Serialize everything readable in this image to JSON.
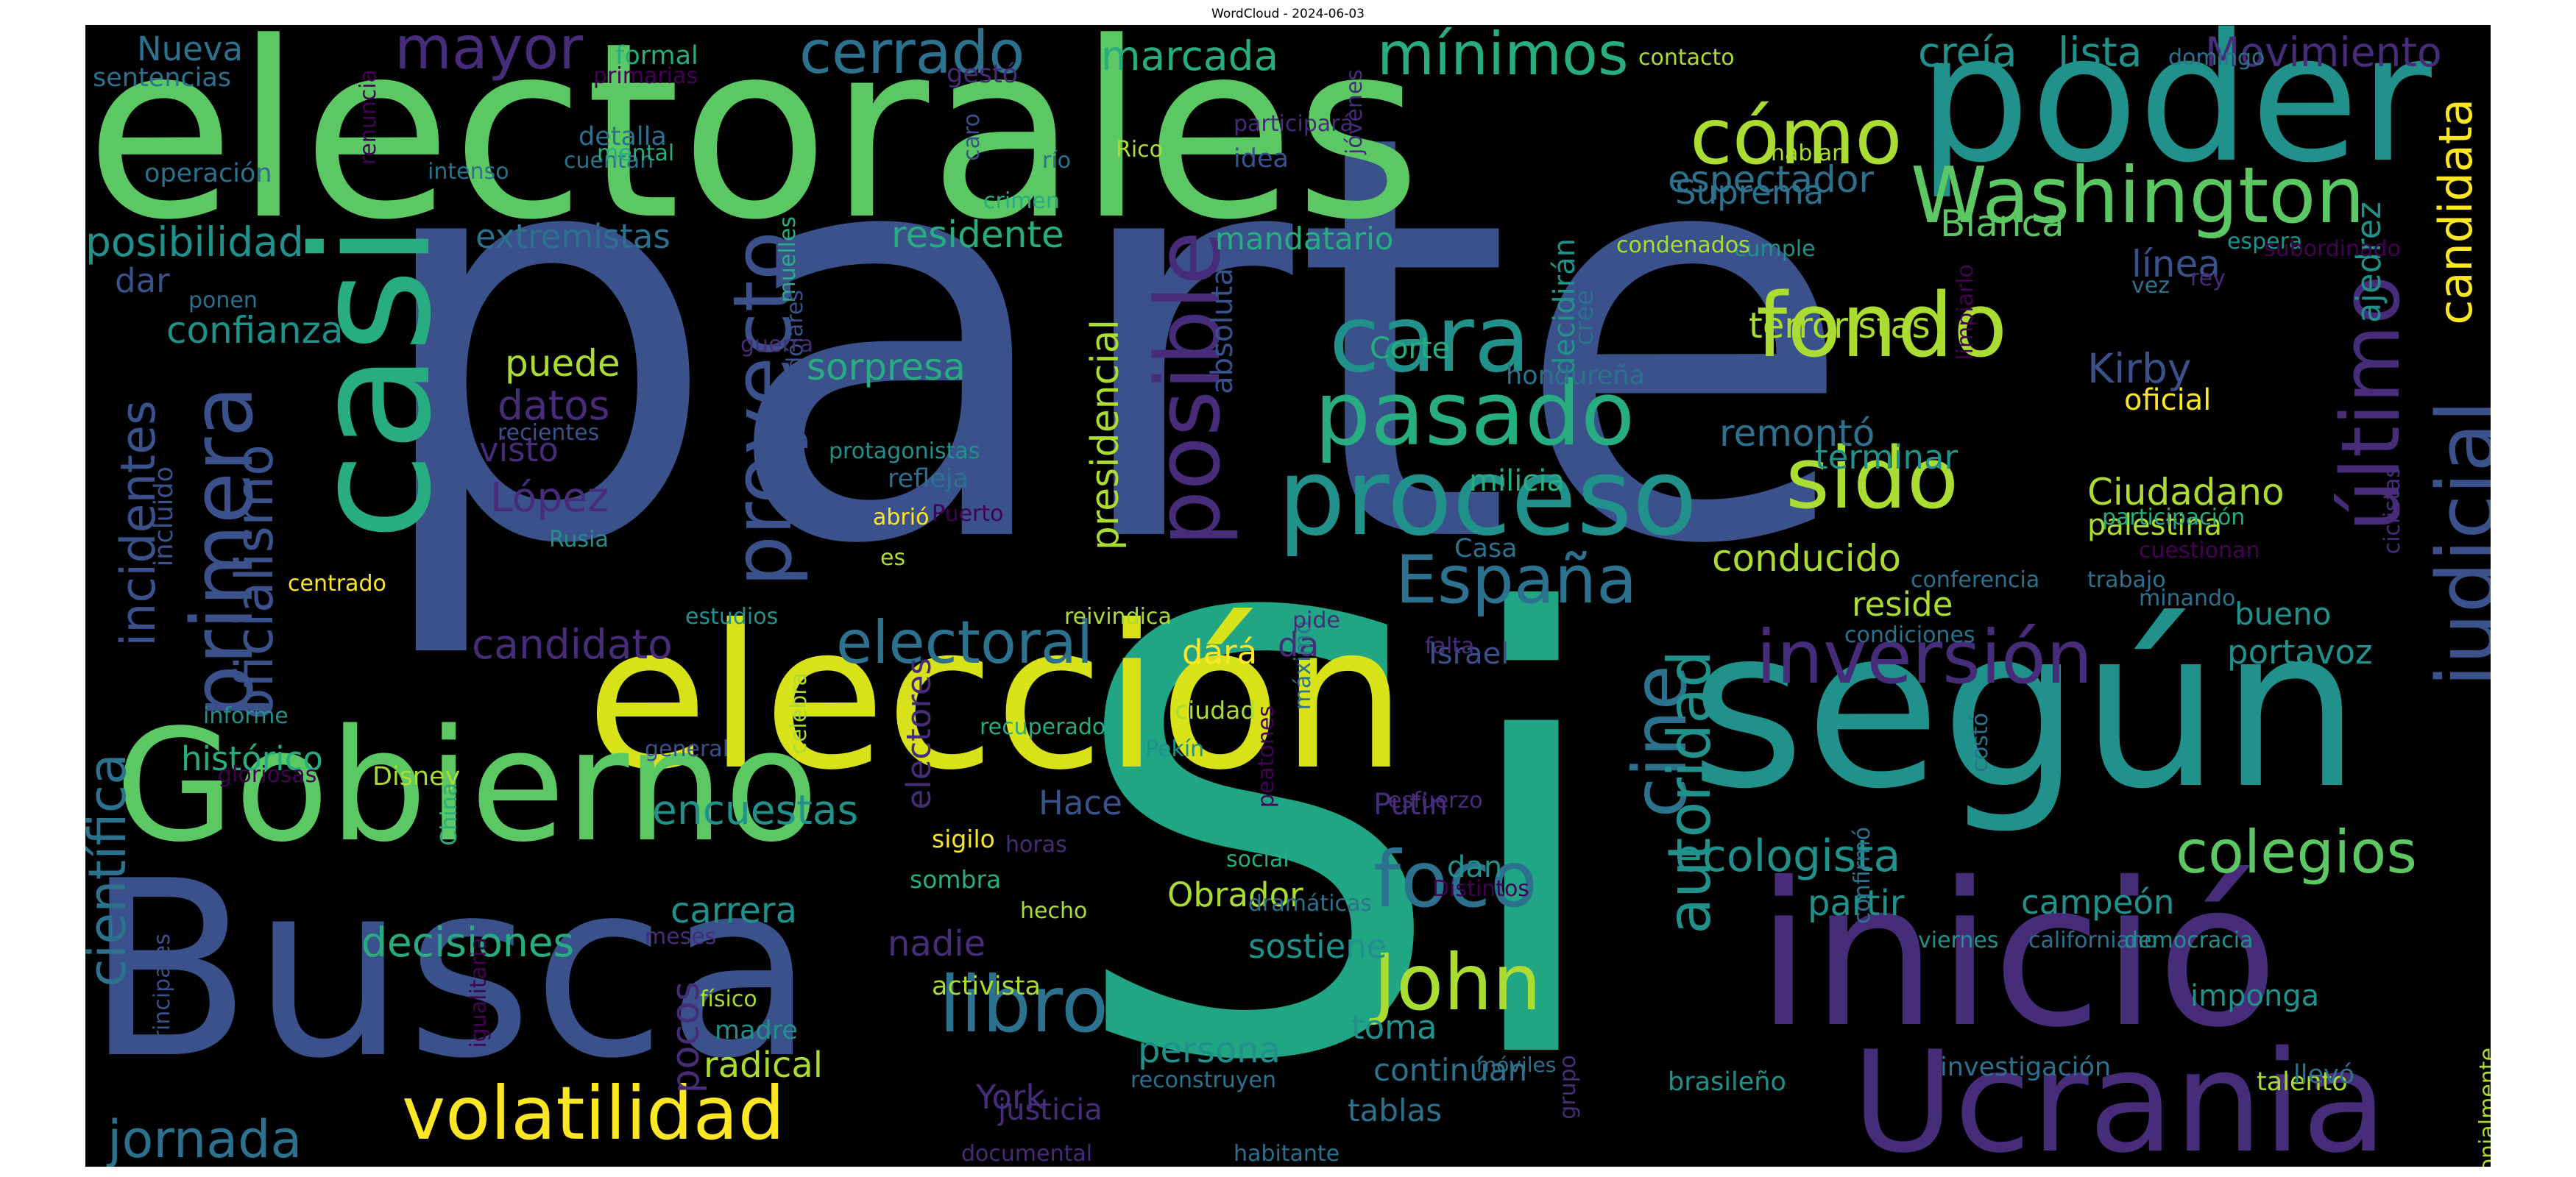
{
  "title": "WordCloud - 2024-06-03",
  "palette": {
    "background": "#000000",
    "c_dark_purple": "#440154",
    "c_purple": "#472c7a",
    "c_indigo": "#3b518b",
    "c_blue": "#2c718e",
    "c_teal": "#21918c",
    "c_green_teal": "#27ad81",
    "c_green": "#5cc863",
    "c_light_green": "#aadc32",
    "c_yellow": "#fde725"
  },
  "words": [
    {
      "text": "parte",
      "color": "#3b518b"
    },
    {
      "text": "Si",
      "color": "#21a685"
    },
    {
      "text": "electorales",
      "color": "#5cc863"
    },
    {
      "text": "según",
      "color": "#21918c"
    },
    {
      "text": "elección",
      "color": "#d8e219"
    },
    {
      "text": "Busca",
      "color": "#3b518b"
    },
    {
      "text": "Gobierno",
      "color": "#5cc863"
    },
    {
      "text": "inició",
      "color": "#472c7a"
    },
    {
      "text": "poder",
      "color": "#21918c"
    },
    {
      "text": "casi",
      "color": "#27ad81"
    },
    {
      "text": "Ucrania",
      "color": "#472c7a"
    },
    {
      "text": "Washington",
      "color": "#5cc863"
    },
    {
      "text": "proceso",
      "color": "#21918c"
    },
    {
      "text": "volatilidad",
      "color": "#fde725"
    },
    {
      "text": "judicial",
      "color": "#3b518b"
    },
    {
      "text": "posible",
      "color": "#472c7a"
    },
    {
      "text": "último",
      "color": "#472c7a"
    },
    {
      "text": "pasado",
      "color": "#27ad81"
    },
    {
      "text": "cara",
      "color": "#21918c"
    },
    {
      "text": "fondo",
      "color": "#aadc32"
    },
    {
      "text": "sido",
      "color": "#aadc32"
    },
    {
      "text": "España",
      "color": "#2c718e"
    },
    {
      "text": "inversión",
      "color": "#472c7a"
    },
    {
      "text": "foco",
      "color": "#2c718e"
    },
    {
      "text": "John",
      "color": "#aadc32"
    },
    {
      "text": "libro",
      "color": "#2c718e"
    },
    {
      "text": "cómo",
      "color": "#aadc32"
    },
    {
      "text": "proyecto",
      "color": "#3b518b"
    },
    {
      "text": "primera",
      "color": "#3b518b"
    },
    {
      "text": "cerrado",
      "color": "#2c718e"
    },
    {
      "text": "mínimos",
      "color": "#27ad81"
    },
    {
      "text": "mayor",
      "color": "#472c7a"
    },
    {
      "text": "colegios",
      "color": "#5cc863"
    },
    {
      "text": "cine",
      "color": "#2c718e"
    },
    {
      "text": "autoridad",
      "color": "#21918c"
    },
    {
      "text": "electoral",
      "color": "#2c718e"
    },
    {
      "text": "candidata",
      "color": "#fde725"
    },
    {
      "text": "jornada",
      "color": "#2c718e"
    },
    {
      "text": "científica",
      "color": "#2c718e"
    },
    {
      "text": "incidentes",
      "color": "#3b518b"
    },
    {
      "text": "oficialismo",
      "color": "#3b518b"
    },
    {
      "text": "ecologista",
      "color": "#21918c"
    },
    {
      "text": "decisiones",
      "color": "#27ad81"
    },
    {
      "text": "encuestas",
      "color": "#21918c"
    },
    {
      "text": "histórico",
      "color": "#27ad81"
    },
    {
      "text": "posibilidad",
      "color": "#21918c"
    },
    {
      "text": "confianza",
      "color": "#21918c"
    },
    {
      "text": "candidato",
      "color": "#472c7a"
    },
    {
      "text": "datos",
      "color": "#472c7a"
    },
    {
      "text": "López",
      "color": "#472c7a"
    },
    {
      "text": "puede",
      "color": "#aadc32"
    },
    {
      "text": "sorpresa",
      "color": "#27ad81"
    },
    {
      "text": "residente",
      "color": "#27ad81"
    },
    {
      "text": "extremistas",
      "color": "#2c718e"
    },
    {
      "text": "marcada",
      "color": "#27ad81"
    },
    {
      "text": "creía",
      "color": "#21918c"
    },
    {
      "text": "lista",
      "color": "#21918c"
    },
    {
      "text": "Movimiento",
      "color": "#472c7a"
    },
    {
      "text": "espectador",
      "color": "#2c718e"
    },
    {
      "text": "Suprema",
      "color": "#2c718e"
    },
    {
      "text": "Blanca",
      "color": "#5cc863"
    },
    {
      "text": "línea",
      "color": "#3b518b"
    },
    {
      "text": "terroristas",
      "color": "#aadc32"
    },
    {
      "text": "remontó",
      "color": "#2c718e"
    },
    {
      "text": "terminar",
      "color": "#21918c"
    },
    {
      "text": "Ciudadano",
      "color": "#aadc32"
    },
    {
      "text": "palestina",
      "color": "#aadc32"
    },
    {
      "text": "conducido",
      "color": "#aadc32"
    },
    {
      "text": "reside",
      "color": "#aadc32"
    },
    {
      "text": "Kirby",
      "color": "#3b518b"
    },
    {
      "text": "oficial",
      "color": "#fde725"
    },
    {
      "text": "ajedrez",
      "color": "#21918c"
    },
    {
      "text": "presidencial",
      "color": "#aadc32"
    },
    {
      "text": "absoluta",
      "color": "#3b518b"
    },
    {
      "text": "mandatario",
      "color": "#27ad81"
    },
    {
      "text": "decidirán",
      "color": "#21918c"
    },
    {
      "text": "cree",
      "color": "#2c718e"
    },
    {
      "text": "Corte",
      "color": "#27ad81"
    },
    {
      "text": "hondureña",
      "color": "#2c718e"
    },
    {
      "text": "milicia",
      "color": "#27ad81"
    },
    {
      "text": "Casa",
      "color": "#2c718e"
    },
    {
      "text": "Israel",
      "color": "#3b518b"
    },
    {
      "text": "dará",
      "color": "#fde725"
    },
    {
      "text": "da",
      "color": "#472c7a"
    },
    {
      "text": "Hace",
      "color": "#3b518b"
    },
    {
      "text": "Putin",
      "color": "#472c7a"
    },
    {
      "text": "dan",
      "color": "#21918c"
    },
    {
      "text": "Obrador",
      "color": "#aadc32"
    },
    {
      "text": "sostiene",
      "color": "#21918c"
    },
    {
      "text": "toma",
      "color": "#21918c"
    },
    {
      "text": "continúan",
      "color": "#2c718e"
    },
    {
      "text": "tablas",
      "color": "#2c718e"
    },
    {
      "text": "persona",
      "color": "#21918c"
    },
    {
      "text": "carrera",
      "color": "#21918c"
    },
    {
      "text": "nadie",
      "color": "#472c7a"
    },
    {
      "text": "pocos",
      "color": "#472c7a"
    },
    {
      "text": "radical",
      "color": "#aadc32"
    },
    {
      "text": "York",
      "color": "#472c7a"
    },
    {
      "text": "electores",
      "color": "#472c7a"
    },
    {
      "text": "partir",
      "color": "#21918c"
    },
    {
      "text": "campeón",
      "color": "#21918c"
    },
    {
      "text": "portavoz",
      "color": "#21918c"
    },
    {
      "text": "bueno",
      "color": "#21918c"
    },
    {
      "text": "imponga",
      "color": "#21918c"
    },
    {
      "text": "brasileño",
      "color": "#21918c"
    },
    {
      "text": "investigación",
      "color": "#2c718e"
    },
    {
      "text": "talento",
      "color": "#aadc32"
    },
    {
      "text": "llevó",
      "color": "#2c718e"
    },
    {
      "text": "Nueva",
      "color": "#2c718e"
    },
    {
      "text": "sentencias",
      "color": "#2c718e"
    },
    {
      "text": "formal",
      "color": "#27ad81"
    },
    {
      "text": "primarias",
      "color": "#440154"
    },
    {
      "text": "gestó",
      "color": "#472c7a"
    },
    {
      "text": "detalla",
      "color": "#2c718e"
    },
    {
      "text": "cuentan",
      "color": "#2c718e"
    },
    {
      "text": "mental",
      "color": "#27ad81"
    },
    {
      "text": "intenso",
      "color": "#2c718e"
    },
    {
      "text": "operación",
      "color": "#2c718e"
    },
    {
      "text": "renuncia",
      "color": "#440154"
    },
    {
      "text": "dar",
      "color": "#3b518b"
    },
    {
      "text": "ponen",
      "color": "#2c718e"
    },
    {
      "text": "incluido",
      "color": "#3b518b"
    },
    {
      "text": "visto",
      "color": "#472c7a"
    },
    {
      "text": "recientes",
      "color": "#3b518b"
    },
    {
      "text": "Rusia",
      "color": "#21918c"
    },
    {
      "text": "centrado",
      "color": "#fde725"
    },
    {
      "text": "informe",
      "color": "#21918c"
    },
    {
      "text": "gloriosas",
      "color": "#440154"
    },
    {
      "text": "Disney",
      "color": "#aadc32"
    },
    {
      "text": "China",
      "color": "#27ad81"
    },
    {
      "text": "principales",
      "color": "#3b518b"
    },
    {
      "text": "igualitaria",
      "color": "#440154"
    },
    {
      "text": "documental",
      "color": "#472c7a"
    },
    {
      "text": "justicia",
      "color": "#472c7a"
    },
    {
      "text": "habitante",
      "color": "#2c718e"
    },
    {
      "text": "madre",
      "color": "#21918c"
    },
    {
      "text": "físico",
      "color": "#aadc32"
    },
    {
      "text": "activista",
      "color": "#aadc32"
    },
    {
      "text": "meses",
      "color": "#472c7a"
    },
    {
      "text": "sombra",
      "color": "#27ad81"
    },
    {
      "text": "hecho",
      "color": "#aadc32"
    },
    {
      "text": "horas",
      "color": "#472c7a"
    },
    {
      "text": "sigilo",
      "color": "#fde725"
    },
    {
      "text": "social",
      "color": "#27ad81"
    },
    {
      "text": "dramáticas",
      "color": "#2c718e"
    },
    {
      "text": "esfuerzo",
      "color": "#472c7a"
    },
    {
      "text": "Distintos",
      "color": "#440154"
    },
    {
      "text": "grupo",
      "color": "#472c7a"
    },
    {
      "text": "reconstruyen",
      "color": "#2c718e"
    },
    {
      "text": "móviles",
      "color": "#2c718e"
    },
    {
      "text": "peatones",
      "color": "#440154"
    },
    {
      "text": "costó",
      "color": "#2c718e"
    },
    {
      "text": "confirmó",
      "color": "#2c718e"
    },
    {
      "text": "viernes",
      "color": "#21918c"
    },
    {
      "text": "californiano",
      "color": "#2c718e"
    },
    {
      "text": "democracia",
      "color": "#21918c"
    },
    {
      "text": "colonialmente",
      "color": "#aadc32"
    },
    {
      "text": "general",
      "color": "#3b518b"
    },
    {
      "text": "celebra",
      "color": "#aadc32"
    },
    {
      "text": "recuperado",
      "color": "#27ad81"
    },
    {
      "text": "ciudad",
      "color": "#aadc32"
    },
    {
      "text": "Pekín",
      "color": "#21918c"
    },
    {
      "text": "máximo",
      "color": "#2c718e"
    },
    {
      "text": "reivindica",
      "color": "#aadc32"
    },
    {
      "text": "estudios",
      "color": "#21918c"
    },
    {
      "text": "pide",
      "color": "#472c7a"
    },
    {
      "text": "falta",
      "color": "#472c7a"
    },
    {
      "text": "condiciones",
      "color": "#2c718e"
    },
    {
      "text": "conferencia",
      "color": "#2c718e"
    },
    {
      "text": "minando",
      "color": "#2c718e"
    },
    {
      "text": "trabajo",
      "color": "#2c718e"
    },
    {
      "text": "ciclistas",
      "color": "#472c7a"
    },
    {
      "text": "cuestionan",
      "color": "#440154"
    },
    {
      "text": "participación",
      "color": "#27ad81"
    },
    {
      "text": "vez",
      "color": "#2c718e"
    },
    {
      "text": "limpiarlo",
      "color": "#440154"
    },
    {
      "text": "rey",
      "color": "#472c7a"
    },
    {
      "text": "espera",
      "color": "#21918c"
    },
    {
      "text": "subordinado",
      "color": "#440154"
    },
    {
      "text": "cumple",
      "color": "#21918c"
    },
    {
      "text": "condenados",
      "color": "#aadc32"
    },
    {
      "text": "hablar",
      "color": "#aadc32"
    },
    {
      "text": "contacto",
      "color": "#aadc32"
    },
    {
      "text": "domingo",
      "color": "#2c718e"
    },
    {
      "text": "jóvenes",
      "color": "#472c7a"
    },
    {
      "text": "participará",
      "color": "#472c7a"
    },
    {
      "text": "idea",
      "color": "#3b518b"
    },
    {
      "text": "Rico",
      "color": "#aadc32"
    },
    {
      "text": "río",
      "color": "#2c718e"
    },
    {
      "text": "caro",
      "color": "#3b518b"
    },
    {
      "text": "crimen",
      "color": "#27ad81"
    },
    {
      "text": "muelles",
      "color": "#27ad81"
    },
    {
      "text": "dólares",
      "color": "#3b518b"
    },
    {
      "text": "guerra",
      "color": "#472c7a"
    },
    {
      "text": "protagonistas",
      "color": "#21918c"
    },
    {
      "text": "refleja",
      "color": "#2c718e"
    },
    {
      "text": "abrió",
      "color": "#fde725"
    },
    {
      "text": "Puerto",
      "color": "#440154"
    },
    {
      "text": "es",
      "color": "#aadc32"
    },
    {
      "text": "salud",
      "color": "#472c7a"
    }
  ]
}
